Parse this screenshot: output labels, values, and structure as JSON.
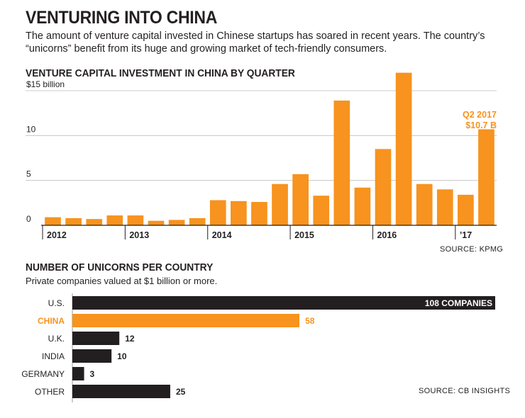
{
  "headline": "VENTURING INTO CHINA",
  "deck": "The amount of venture capital invested in Chinese startups has soared in recent years. The country’s “unicorns” benefit from its huge and growing market of tech-friendly consumers.",
  "colors": {
    "orange": "#f7931e",
    "black": "#231f20",
    "gray_axis": "#999999"
  },
  "chart_data": [
    {
      "type": "bar",
      "title": "VENTURE CAPITAL INVESTMENT IN CHINA BY QUARTER",
      "ylabel": "$ billion",
      "ylim": [
        0,
        15
      ],
      "yticks": [
        {
          "value": 15,
          "label": "$15 billion"
        },
        {
          "value": 10,
          "label": "10"
        },
        {
          "value": 5,
          "label": "5"
        },
        {
          "value": 0,
          "label": "0"
        }
      ],
      "years": [
        "2012",
        "2013",
        "2014",
        "2015",
        "2016",
        "’17"
      ],
      "categories": [
        "Q1 2012",
        "Q2 2012",
        "Q3 2012",
        "Q4 2012",
        "Q1 2013",
        "Q2 2013",
        "Q3 2013",
        "Q4 2013",
        "Q1 2014",
        "Q2 2014",
        "Q3 2014",
        "Q4 2014",
        "Q1 2015",
        "Q2 2015",
        "Q3 2015",
        "Q4 2015",
        "Q1 2016",
        "Q2 2016",
        "Q3 2016",
        "Q4 2016",
        "Q1 2017",
        "Q2 2017"
      ],
      "values": [
        0.9,
        0.8,
        0.7,
        1.1,
        1.1,
        0.5,
        0.6,
        0.8,
        2.8,
        2.7,
        2.6,
        4.6,
        5.7,
        3.3,
        13.9,
        4.2,
        8.5,
        17.0,
        4.6,
        4.0,
        3.4,
        10.7
      ],
      "annotation": {
        "line1": "Q2 2017",
        "line2": "$10.7 B"
      },
      "source": "SOURCE: KPMG"
    },
    {
      "type": "bar",
      "orientation": "horizontal",
      "title": "NUMBER OF UNICORNS PER COUNTRY",
      "subtitle": "Private companies valued at $1 billion or more.",
      "categories": [
        "U.S.",
        "CHINA",
        "U.K.",
        "INDIA",
        "GERMANY",
        "OTHER"
      ],
      "values": [
        108,
        58,
        12,
        10,
        3,
        25
      ],
      "value_labels": [
        "108 COMPANIES",
        "58",
        "12",
        "10",
        "3",
        "25"
      ],
      "highlight": "CHINA",
      "source": "SOURCE: CB INSIGHTS"
    }
  ]
}
